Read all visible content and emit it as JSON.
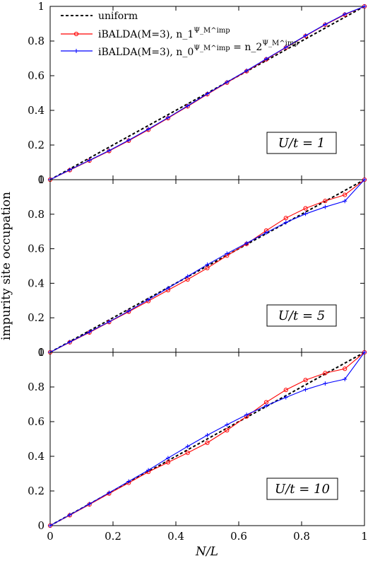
{
  "figure": {
    "ylabel": "impurity site occupation",
    "xlabel": "N/L"
  },
  "legend": {
    "items": [
      {
        "label": "uniform",
        "style": "dashed",
        "color": "#000000"
      },
      {
        "label": "iBALDA(M=3), n_1^{Ψ_M^imp}",
        "color": "#ff0000",
        "marker": "circle"
      },
      {
        "label": "iBALDA(M=3), n_0^{Ψ_M^imp} = n_2^{Ψ_M^imp}",
        "color": "#0000ff",
        "marker": "plus"
      }
    ]
  },
  "colors": {
    "red": "#ff0000",
    "blue": "#0000ff",
    "black": "#000000"
  },
  "chart_data": [
    {
      "type": "line",
      "annotation": "U/t = 1",
      "xlim": [
        0,
        1
      ],
      "ylim": [
        0,
        1
      ],
      "yticks": [
        "0",
        "0.2",
        "0.4",
        "0.6",
        "0.8",
        "1"
      ],
      "xticks": [
        "0",
        "0.2",
        "0.4",
        "0.6",
        "0.8",
        "1"
      ],
      "x": [
        0,
        0.0625,
        0.125,
        0.1875,
        0.25,
        0.3125,
        0.375,
        0.4375,
        0.5,
        0.5625,
        0.625,
        0.6875,
        0.75,
        0.8125,
        0.875,
        0.9375,
        1
      ],
      "series": [
        {
          "name": "uniform",
          "values": [
            0,
            0.0625,
            0.125,
            0.1875,
            0.25,
            0.3125,
            0.375,
            0.4375,
            0.5,
            0.5625,
            0.625,
            0.6875,
            0.75,
            0.8125,
            0.875,
            0.9375,
            1
          ]
        },
        {
          "name": "iBALDA(M=3), n_1^{Ψ_M^imp}",
          "values": [
            0,
            0.055,
            0.11,
            0.165,
            0.225,
            0.288,
            0.355,
            0.423,
            0.493,
            0.56,
            0.626,
            0.694,
            0.762,
            0.829,
            0.894,
            0.952,
            1
          ]
        },
        {
          "name": "iBALDA(M=3), n_0^{Ψ_M^imp} = n_2^{Ψ_M^imp}",
          "values": [
            0,
            0.057,
            0.112,
            0.168,
            0.228,
            0.292,
            0.358,
            0.426,
            0.496,
            0.563,
            0.629,
            0.697,
            0.764,
            0.831,
            0.896,
            0.955,
            1
          ]
        }
      ]
    },
    {
      "type": "line",
      "annotation": "U/t = 5",
      "xlim": [
        0,
        1
      ],
      "ylim": [
        0,
        1
      ],
      "yticks": [
        "0",
        "0.2",
        "0.4",
        "0.6",
        "0.8",
        "1"
      ],
      "xticks": [
        "0",
        "0.2",
        "0.4",
        "0.6",
        "0.8",
        "1"
      ],
      "x": [
        0,
        0.0625,
        0.125,
        0.1875,
        0.25,
        0.3125,
        0.375,
        0.4375,
        0.5,
        0.5625,
        0.625,
        0.6875,
        0.75,
        0.8125,
        0.875,
        0.9375,
        1
      ],
      "series": [
        {
          "name": "uniform",
          "values": [
            0,
            0.0625,
            0.125,
            0.1875,
            0.25,
            0.3125,
            0.375,
            0.4375,
            0.5,
            0.5625,
            0.625,
            0.6875,
            0.75,
            0.8125,
            0.875,
            0.9375,
            1
          ]
        },
        {
          "name": "iBALDA(M=3), n_1^{Ψ_M^imp}",
          "values": [
            0,
            0.058,
            0.115,
            0.175,
            0.235,
            0.297,
            0.36,
            0.422,
            0.488,
            0.56,
            0.628,
            0.705,
            0.778,
            0.834,
            0.877,
            0.912,
            1
          ]
        },
        {
          "name": "iBALDA(M=3), n_0^{Ψ_M^imp} = n_2^{Ψ_M^imp}",
          "values": [
            0,
            0.06,
            0.118,
            0.177,
            0.239,
            0.305,
            0.372,
            0.44,
            0.508,
            0.572,
            0.632,
            0.693,
            0.752,
            0.802,
            0.842,
            0.876,
            1
          ]
        }
      ]
    },
    {
      "type": "line",
      "annotation": "U/t = 10",
      "xlim": [
        0,
        1
      ],
      "ylim": [
        0,
        1
      ],
      "yticks": [
        "0",
        "0.2",
        "0.4",
        "0.6",
        "0.8",
        "1"
      ],
      "xticks": [
        "0",
        "0.2",
        "0.4",
        "0.6",
        "0.8",
        "1"
      ],
      "x": [
        0,
        0.0625,
        0.125,
        0.1875,
        0.25,
        0.3125,
        0.375,
        0.4375,
        0.5,
        0.5625,
        0.625,
        0.6875,
        0.75,
        0.8125,
        0.875,
        0.9375,
        1
      ],
      "series": [
        {
          "name": "uniform",
          "values": [
            0,
            0.0625,
            0.125,
            0.1875,
            0.25,
            0.3125,
            0.375,
            0.4375,
            0.5,
            0.5625,
            0.625,
            0.6875,
            0.75,
            0.8125,
            0.875,
            0.9375,
            1
          ]
        },
        {
          "name": "iBALDA(M=3), n_1^{Ψ_M^imp}",
          "values": [
            0,
            0.06,
            0.122,
            0.185,
            0.247,
            0.31,
            0.365,
            0.42,
            0.478,
            0.55,
            0.63,
            0.712,
            0.783,
            0.84,
            0.88,
            0.905,
            1
          ]
        },
        {
          "name": "iBALDA(M=3), n_0^{Ψ_M^imp} = n_2^{Ψ_M^imp}",
          "values": [
            0,
            0.062,
            0.125,
            0.19,
            0.255,
            0.32,
            0.39,
            0.457,
            0.522,
            0.582,
            0.64,
            0.692,
            0.74,
            0.785,
            0.82,
            0.845,
            1
          ]
        }
      ]
    }
  ]
}
